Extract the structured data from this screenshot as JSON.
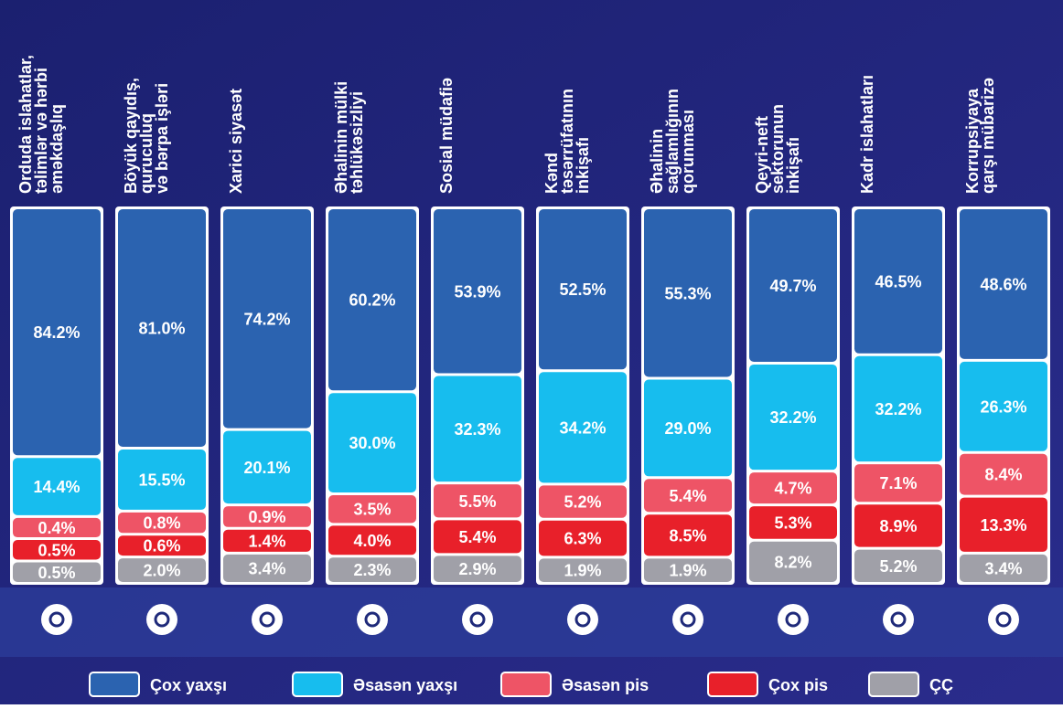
{
  "chart_data": {
    "type": "stacked-bar",
    "categories": [
      [
        "Orduda islahatlar,",
        "təlimlər və hərbi",
        "əməkdaşlıq"
      ],
      [
        "Böyük qayıdış,",
        "quruculuq",
        "və bərpa işləri"
      ],
      [
        "Xarici siyasət"
      ],
      [
        "Əhalinin mülki",
        "təhlükəsizliyi"
      ],
      [
        "Sosial müdafiə"
      ],
      [
        "Kənd",
        "təsərrüfatının",
        "inkişafı"
      ],
      [
        "Əhalinin",
        "sağlamlığının",
        "qorunması"
      ],
      [
        "Qeyri-neft",
        "sektorunun",
        "inkişafı"
      ],
      [
        "Kadr islahatları"
      ],
      [
        "Korrupsiyaya",
        "qarşı mübarizə"
      ]
    ],
    "series": [
      {
        "name": "Çox yaxşı",
        "color": "#2b63b0",
        "values": [
          84.2,
          81.0,
          74.2,
          60.2,
          53.9,
          52.5,
          55.3,
          49.7,
          46.5,
          48.6
        ],
        "value_labels": [
          "84.2%",
          "81.0%",
          "74.2%",
          "60.2%",
          "53.9%",
          "52.5%",
          "55.3%",
          "49.7%",
          "46.5%",
          "48.6%"
        ]
      },
      {
        "name": "Əsasən yaxşı",
        "color": "#17bdee",
        "values": [
          14.4,
          15.5,
          20.1,
          30.0,
          32.3,
          34.2,
          29.0,
          32.2,
          32.2,
          26.3
        ],
        "value_labels": [
          "14.4%",
          "15.5%",
          "20.1%",
          "30.0%",
          "32.3%",
          "34.2%",
          "29.0%",
          "32.2%",
          "32.2%",
          "26.3%"
        ]
      },
      {
        "name": "Əsasən pis",
        "color": "#ee5466",
        "values": [
          0.4,
          0.8,
          0.9,
          3.5,
          5.5,
          5.2,
          5.4,
          4.7,
          7.1,
          8.4
        ],
        "value_labels": [
          "0.4%",
          "0.8%",
          "0.9%",
          "3.5%",
          "5.5%",
          "5.2%",
          "5.4%",
          "4.7%",
          "7.1%",
          "8.4%"
        ]
      },
      {
        "name": "Çox pis",
        "color": "#e8202a",
        "values": [
          0.5,
          0.6,
          1.4,
          4.0,
          5.4,
          6.3,
          8.5,
          5.3,
          8.9,
          13.3
        ],
        "value_labels": [
          "0.5%",
          "0.6%",
          "1.4%",
          "4.0%",
          "5.4%",
          "6.3%",
          "8.5%",
          "5.3%",
          "8.9%",
          "13.3%"
        ]
      },
      {
        "name": "ÇÇ",
        "color": "#a0a0a8",
        "values": [
          0.5,
          2.0,
          3.4,
          2.3,
          2.9,
          1.9,
          1.9,
          8.2,
          5.2,
          3.4
        ],
        "value_labels": [
          "0.5%",
          "2.0%",
          "3.4%",
          "2.3%",
          "2.9%",
          "1.9%",
          "1.9%",
          "8.2%",
          "5.2%",
          "3.4%"
        ]
      }
    ]
  }
}
